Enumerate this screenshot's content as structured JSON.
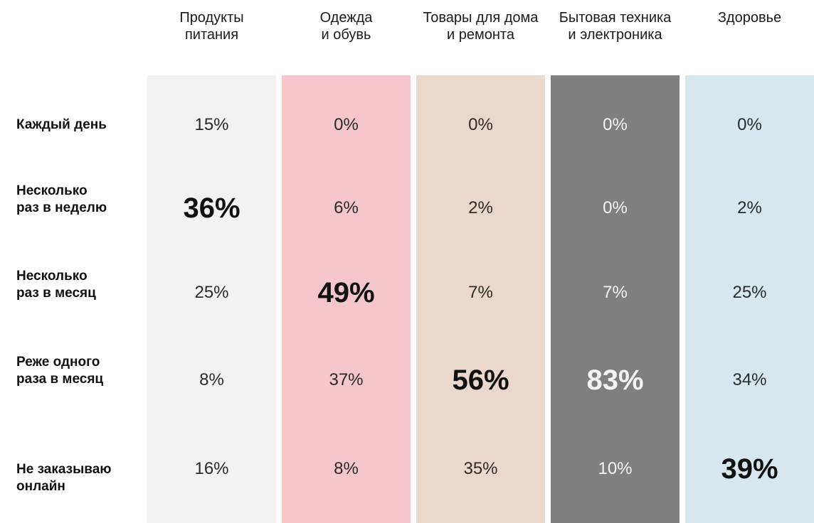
{
  "chart_data": {
    "type": "table",
    "categories": [
      "Продукты\nпитания",
      "Одежда\nи обувь",
      "Товары для дома\nи ремонта",
      "Бытовая техника\nи электроника",
      "Здоровье"
    ],
    "rows": [
      "Каждый день",
      "Несколько\nраз в неделю",
      "Несколько\nраз в месяц",
      "Реже одного\nраза в месяц",
      "Не заказываю\nонлайн"
    ],
    "values": [
      [
        "15%",
        "0%",
        "0%",
        "0%",
        "0%"
      ],
      [
        "36%",
        "6%",
        "2%",
        "0%",
        "2%"
      ],
      [
        "25%",
        "49%",
        "7%",
        "7%",
        "25%"
      ],
      [
        "8%",
        "37%",
        "56%",
        "83%",
        "34%"
      ],
      [
        "16%",
        "8%",
        "35%",
        "10%",
        "39%"
      ]
    ],
    "highlight_row_index": [
      1,
      2,
      3,
      3,
      4
    ],
    "column_colors": [
      "#f2f2f2",
      "#f5c6cc",
      "#e9d8cb",
      "#7f7f80",
      "#d6e8ee"
    ]
  }
}
